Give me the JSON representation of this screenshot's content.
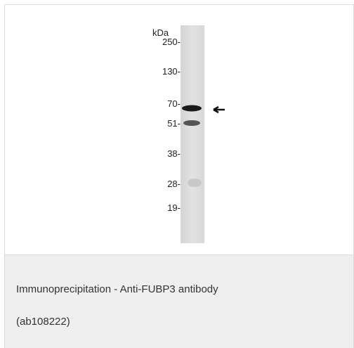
{
  "blot": {
    "unit_label": "kDa",
    "markers": [
      "250-",
      "130-",
      "70-",
      "51-",
      "38-",
      "28-",
      "19-"
    ]
  },
  "caption": {
    "title": "Immunoprecipitation - Anti-FUBP3 antibody",
    "code": "(ab108222)"
  }
}
